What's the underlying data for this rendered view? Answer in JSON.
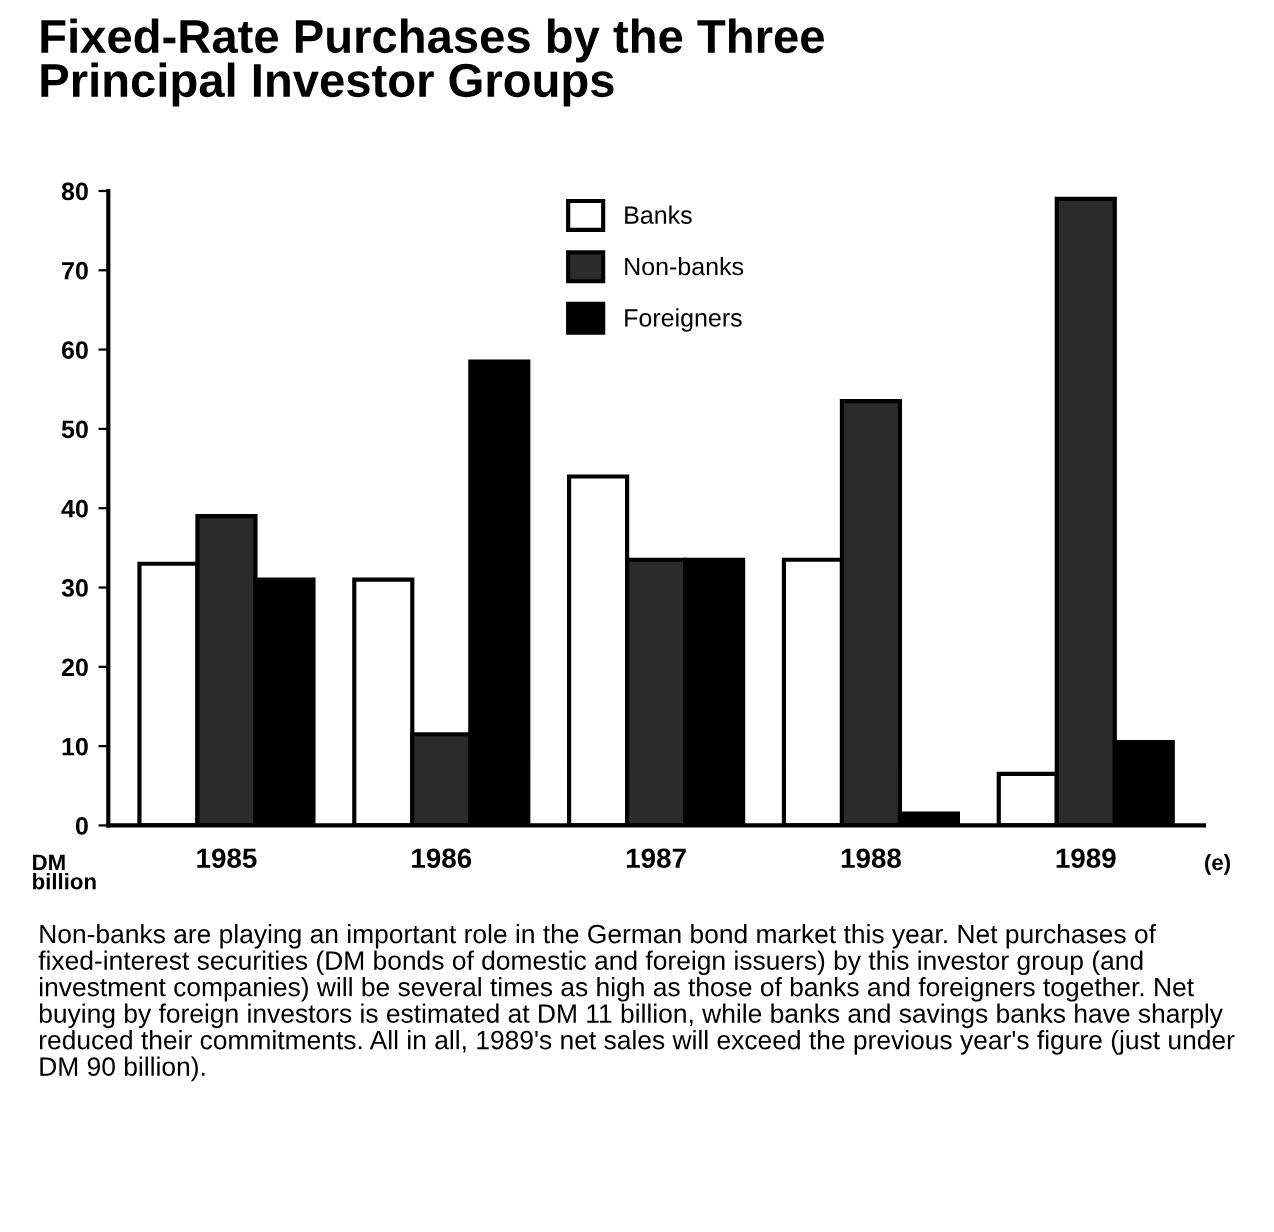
{
  "chart_data": {
    "type": "bar",
    "title": "Fixed-Rate Purchases by the Three\nPrincipal Investor Groups",
    "ylabel": "DM\nbillion",
    "categories": [
      "1985",
      "1986",
      "1987",
      "1988",
      "1989"
    ],
    "series": [
      {
        "name": "Banks",
        "color": "#ffffff",
        "values": [
          33,
          31,
          44,
          33.5,
          6.5
        ]
      },
      {
        "name": "Non-banks",
        "color": "#2b2b2b",
        "values": [
          39,
          11.5,
          33.5,
          53.5,
          79
        ]
      },
      {
        "name": "Foreigners",
        "color": "#000000",
        "values": [
          31,
          58.5,
          33.5,
          1.5,
          10.5
        ]
      }
    ],
    "ylim": [
      0,
      80
    ],
    "yticks": [
      0,
      10,
      20,
      30,
      40,
      50,
      60,
      70,
      80
    ],
    "grid": false,
    "legend": "top",
    "annotations": [
      "(e)",
      "Non-banks are playing an important role in the German bond market this year. Net purchases of fixed-interest securities (DM bonds of domestic and foreign issuers) by this investor group (and investment companies) will be several times as high as those of banks and foreigners together. Net buying by foreign investors is estimated at DM 11 billion, while banks and savings banks have sharply reduced their commitments. All in all, 1989's net sales will exceed the previous year's figure (just under DM 90 billion)."
    ]
  }
}
